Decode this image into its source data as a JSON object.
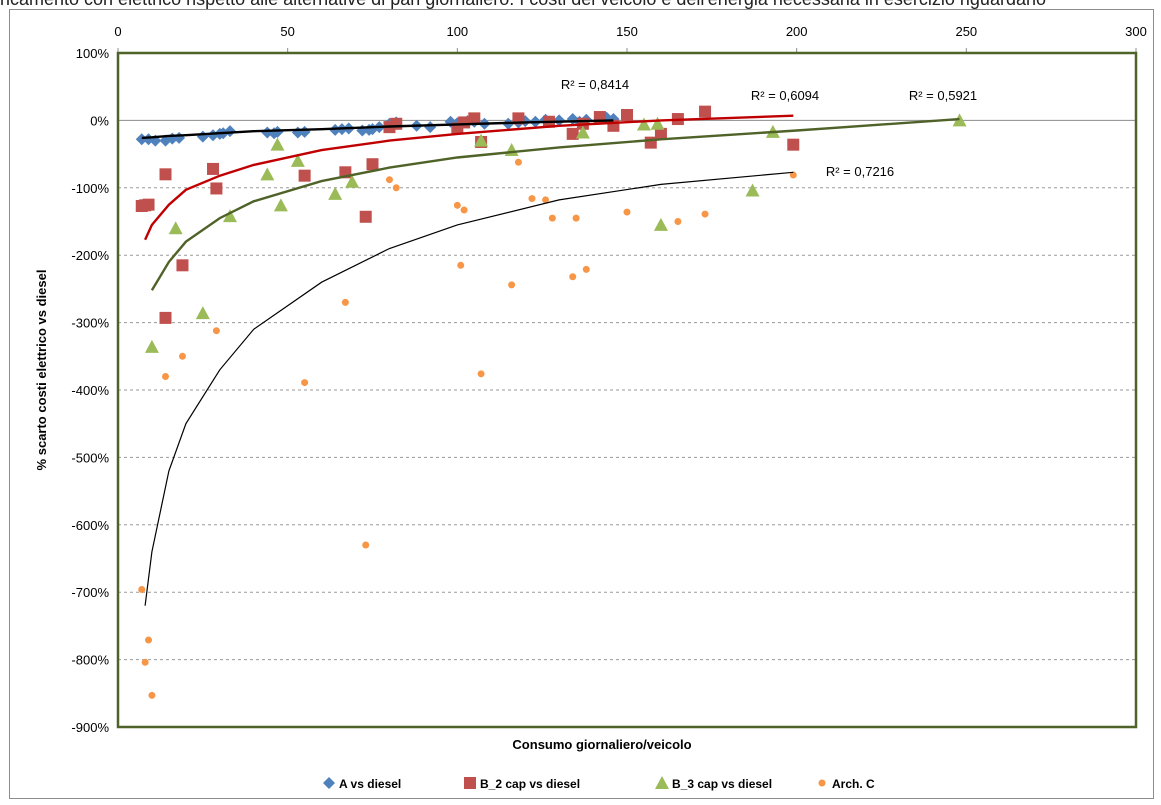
{
  "caption_fragment": "ricamento con elettrico rispetto alle alternative di pari giornaliero. I costi del veicolo e dell'energia necessaria in esercizio riguardano",
  "chart_data": {
    "type": "scatter",
    "title": "",
    "xlabel": "Consumo giornaliero/veicolo",
    "ylabel": "% scarto costi elettrico vs diesel",
    "xlim": [
      0,
      300
    ],
    "ylim": [
      -900,
      100
    ],
    "x_ticks": [
      "0",
      "50",
      "100",
      "150",
      "200",
      "250",
      "300"
    ],
    "y_ticks": [
      "100%",
      "0%",
      "-100%",
      "-200%",
      "-300%",
      "-400%",
      "-500%",
      "-600%",
      "-700%",
      "-800%",
      "-900%"
    ],
    "grid": "horizontal dashed",
    "legend_position": "bottom",
    "plot_background": "#ffffff",
    "plot_border_color": "#4f6228",
    "series": [
      {
        "name": "A vs diesel",
        "marker": "diamond",
        "color": "#4f81bd",
        "points": [
          [
            7,
            -28
          ],
          [
            9,
            -28
          ],
          [
            11,
            -30
          ],
          [
            14,
            -30
          ],
          [
            16,
            -27
          ],
          [
            18,
            -26
          ],
          [
            25,
            -24
          ],
          [
            28,
            -22
          ],
          [
            30,
            -20
          ],
          [
            31,
            -19
          ],
          [
            33,
            -16
          ],
          [
            44,
            -18
          ],
          [
            46,
            -19
          ],
          [
            47,
            -17
          ],
          [
            53,
            -18
          ],
          [
            55,
            -17
          ],
          [
            64,
            -14
          ],
          [
            66,
            -13
          ],
          [
            68,
            -12
          ],
          [
            72,
            -15
          ],
          [
            74,
            -14
          ],
          [
            75,
            -13
          ],
          [
            77,
            -10
          ],
          [
            80,
            -5
          ],
          [
            82,
            -3
          ],
          [
            88,
            -8
          ],
          [
            92,
            -10
          ],
          [
            98,
            -2
          ],
          [
            100,
            -4
          ],
          [
            103,
            -1
          ],
          [
            105,
            -2
          ],
          [
            108,
            -5
          ],
          [
            115,
            -5
          ],
          [
            118,
            -3
          ],
          [
            120,
            -1
          ],
          [
            123,
            -2
          ],
          [
            126,
            1
          ],
          [
            130,
            0
          ],
          [
            134,
            2
          ],
          [
            136,
            -2
          ],
          [
            138,
            1
          ],
          [
            142,
            3
          ],
          [
            144,
            4
          ],
          [
            146,
            2
          ]
        ],
        "trend": {
          "type": "log",
          "label": "R² = 0,8414",
          "color": "#000000",
          "x_range": [
            7,
            146
          ],
          "points": [
            [
              7,
              -26
            ],
            [
              10,
              -25
            ],
            [
              15,
              -23
            ],
            [
              20,
              -22
            ],
            [
              30,
              -19
            ],
            [
              40,
              -16
            ],
            [
              60,
              -13
            ],
            [
              80,
              -9
            ],
            [
              100,
              -6
            ],
            [
              120,
              -3
            ],
            [
              146,
              0
            ]
          ]
        }
      },
      {
        "name": "B_2 cap vs diesel",
        "marker": "square",
        "color": "#c0504d",
        "points": [
          [
            7,
            -127
          ],
          [
            8,
            -126
          ],
          [
            9,
            -125
          ],
          [
            14,
            -80
          ],
          [
            14,
            -293
          ],
          [
            19,
            -215
          ],
          [
            28,
            -72
          ],
          [
            29,
            -101
          ],
          [
            55,
            -82
          ],
          [
            67,
            -77
          ],
          [
            73,
            -143
          ],
          [
            75,
            -65
          ],
          [
            80,
            -10
          ],
          [
            82,
            -5
          ],
          [
            100,
            -12
          ],
          [
            102,
            -3
          ],
          [
            105,
            3
          ],
          [
            107,
            -32
          ],
          [
            118,
            3
          ],
          [
            127,
            -2
          ],
          [
            134,
            -20
          ],
          [
            137,
            -5
          ],
          [
            142,
            5
          ],
          [
            146,
            -8
          ],
          [
            150,
            8
          ],
          [
            157,
            -33
          ],
          [
            160,
            -20
          ],
          [
            165,
            2
          ],
          [
            173,
            13
          ],
          [
            199,
            -36
          ]
        ],
        "trend": {
          "type": "log",
          "label": "R² = 0,6094",
          "color": "#c00000",
          "x_range": [
            8,
            199
          ],
          "points": [
            [
              8,
              -177
            ],
            [
              10,
              -155
            ],
            [
              15,
              -125
            ],
            [
              20,
              -103
            ],
            [
              30,
              -82
            ],
            [
              40,
              -66
            ],
            [
              60,
              -44
            ],
            [
              80,
              -30
            ],
            [
              100,
              -20
            ],
            [
              130,
              -8
            ],
            [
              160,
              0
            ],
            [
              199,
              7
            ]
          ]
        }
      },
      {
        "name": "B_3 cap vs diesel",
        "marker": "triangle",
        "color": "#9bbb59",
        "points": [
          [
            10,
            -336
          ],
          [
            17,
            -160
          ],
          [
            25,
            -286
          ],
          [
            33,
            -142
          ],
          [
            44,
            -80
          ],
          [
            47,
            -36
          ],
          [
            48,
            -126
          ],
          [
            53,
            -60
          ],
          [
            64,
            -109
          ],
          [
            69,
            -91
          ],
          [
            107,
            -30
          ],
          [
            116,
            -44
          ],
          [
            137,
            -18
          ],
          [
            155,
            -6
          ],
          [
            159,
            -5
          ],
          [
            160,
            -155
          ],
          [
            187,
            -104
          ],
          [
            193,
            -17
          ],
          [
            248,
            0
          ]
        ],
        "trend": {
          "type": "log",
          "label": "R² = 0,5921",
          "color": "#4f6228",
          "x_range": [
            10,
            248
          ],
          "points": [
            [
              10,
              -252
            ],
            [
              15,
              -210
            ],
            [
              20,
              -180
            ],
            [
              30,
              -145
            ],
            [
              40,
              -120
            ],
            [
              60,
              -90
            ],
            [
              80,
              -70
            ],
            [
              100,
              -55
            ],
            [
              130,
              -40
            ],
            [
              160,
              -28
            ],
            [
              200,
              -15
            ],
            [
              248,
              2
            ]
          ]
        }
      },
      {
        "name": "Arch. C",
        "marker": "circle",
        "color": "#f79646",
        "points": [
          [
            7,
            -696
          ],
          [
            8,
            -804
          ],
          [
            9,
            -771
          ],
          [
            10,
            -853
          ],
          [
            14,
            -380
          ],
          [
            19,
            -350
          ],
          [
            29,
            -312
          ],
          [
            55,
            -389
          ],
          [
            67,
            -270
          ],
          [
            73,
            -630
          ],
          [
            80,
            -88
          ],
          [
            82,
            -100
          ],
          [
            100,
            -126
          ],
          [
            101,
            -215
          ],
          [
            102,
            -133
          ],
          [
            107,
            -376
          ],
          [
            116,
            -244
          ],
          [
            118,
            -62
          ],
          [
            122,
            -116
          ],
          [
            126,
            -118
          ],
          [
            128,
            -145
          ],
          [
            134,
            -232
          ],
          [
            135,
            -145
          ],
          [
            138,
            -221
          ],
          [
            150,
            -136
          ],
          [
            165,
            -150
          ],
          [
            173,
            -139
          ],
          [
            199,
            -81
          ]
        ],
        "trend": {
          "type": "log",
          "label": "R² = 0,7216",
          "color": "#000000",
          "x_range": [
            8,
            199
          ],
          "points": [
            [
              8,
              -720
            ],
            [
              10,
              -640
            ],
            [
              15,
              -520
            ],
            [
              20,
              -450
            ],
            [
              30,
              -370
            ],
            [
              40,
              -310
            ],
            [
              60,
              -240
            ],
            [
              80,
              -190
            ],
            [
              100,
              -155
            ],
            [
              130,
              -118
            ],
            [
              160,
              -95
            ],
            [
              199,
              -77
            ]
          ]
        }
      }
    ]
  }
}
